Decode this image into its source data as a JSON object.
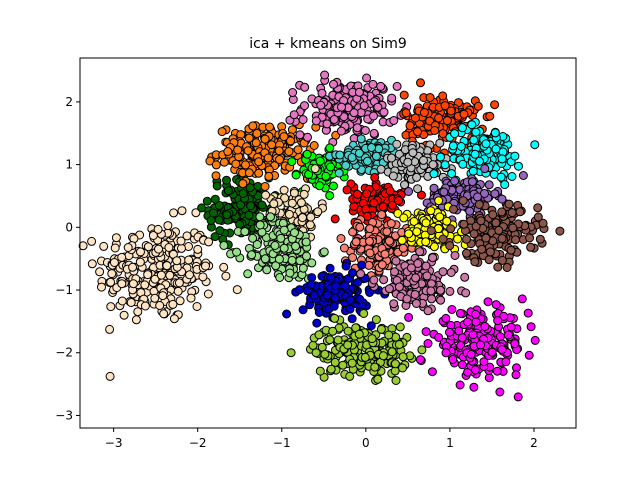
{
  "chart_data": {
    "type": "scatter",
    "title": "ica + kmeans on Sim9",
    "xlabel": "",
    "ylabel": "",
    "xlim": [
      -3.4,
      2.5
    ],
    "ylim": [
      -3.2,
      2.7
    ],
    "xticks": [
      -3,
      -2,
      -1,
      0,
      1,
      2
    ],
    "yticks": [
      -3,
      -2,
      -1,
      0,
      1,
      2
    ],
    "xtick_labels": [
      "−3",
      "−2",
      "−1",
      "0",
      "1",
      "2"
    ],
    "ytick_labels": [
      "−3",
      "−2",
      "−1",
      "0",
      "1",
      "2"
    ],
    "grid": false,
    "legend": "none",
    "marker_edge_color": "#000000",
    "series": [
      {
        "color": "#ffe4c4",
        "center": [
          -2.5,
          -0.7
        ],
        "spread": [
          0.35,
          0.4
        ],
        "count": 260
      },
      {
        "color": "#006400",
        "center": [
          -1.5,
          0.3
        ],
        "spread": [
          0.18,
          0.25
        ],
        "count": 140
      },
      {
        "color": "#ff7f0e",
        "center": [
          -1.2,
          1.2
        ],
        "spread": [
          0.28,
          0.2
        ],
        "count": 190
      },
      {
        "color": "#e377c2",
        "center": [
          -0.2,
          1.9
        ],
        "spread": [
          0.28,
          0.22
        ],
        "count": 190
      },
      {
        "color": "#00ff00",
        "center": [
          -0.55,
          0.9
        ],
        "spread": [
          0.13,
          0.15
        ],
        "count": 70
      },
      {
        "color": "#f5deb3",
        "center": [
          -0.85,
          0.25
        ],
        "spread": [
          0.15,
          0.2
        ],
        "count": 90
      },
      {
        "color": "#98df8a",
        "center": [
          -1.0,
          -0.35
        ],
        "spread": [
          0.22,
          0.25
        ],
        "count": 160
      },
      {
        "color": "#48d1cc",
        "center": [
          0.05,
          1.15
        ],
        "spread": [
          0.18,
          0.12
        ],
        "count": 100
      },
      {
        "color": "#ff0000",
        "center": [
          0.15,
          0.45
        ],
        "spread": [
          0.16,
          0.15
        ],
        "count": 110
      },
      {
        "color": "#fa8072",
        "center": [
          0.15,
          -0.3
        ],
        "spread": [
          0.2,
          0.2
        ],
        "count": 140
      },
      {
        "color": "#0000cd",
        "center": [
          -0.35,
          -1.05
        ],
        "spread": [
          0.2,
          0.18
        ],
        "count": 150
      },
      {
        "color": "#9acd32",
        "center": [
          -0.05,
          -1.95
        ],
        "spread": [
          0.28,
          0.2
        ],
        "count": 210
      },
      {
        "color": "#ff4500",
        "center": [
          0.9,
          1.7
        ],
        "spread": [
          0.22,
          0.22
        ],
        "count": 150
      },
      {
        "color": "#bdbdbd",
        "center": [
          0.6,
          1.05
        ],
        "spread": [
          0.18,
          0.15
        ],
        "count": 110
      },
      {
        "color": "#00ffff",
        "center": [
          1.4,
          1.2
        ],
        "spread": [
          0.22,
          0.2
        ],
        "count": 140
      },
      {
        "color": "#9467bd",
        "center": [
          1.15,
          0.5
        ],
        "spread": [
          0.2,
          0.15
        ],
        "count": 120
      },
      {
        "color": "#ffff00",
        "center": [
          0.75,
          -0.05
        ],
        "spread": [
          0.17,
          0.17
        ],
        "count": 120
      },
      {
        "color": "#8c564b",
        "center": [
          1.55,
          -0.1
        ],
        "spread": [
          0.25,
          0.22
        ],
        "count": 170
      },
      {
        "color": "#cc79a7",
        "center": [
          0.6,
          -0.9
        ],
        "spread": [
          0.24,
          0.2
        ],
        "count": 150
      },
      {
        "color": "#ff00ff",
        "center": [
          1.35,
          -1.85
        ],
        "spread": [
          0.28,
          0.25
        ],
        "count": 200
      }
    ]
  }
}
